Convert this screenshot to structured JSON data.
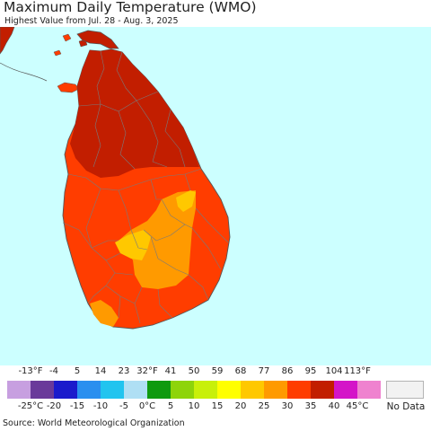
{
  "title": "Maximum Daily Temperature (WMO)",
  "subtitle": "Highest Value from Jul. 28 - Aug. 3, 2025",
  "legend": {
    "fahrenheit_ticks": [
      "-13°F",
      "-4",
      "5",
      "14",
      "23",
      "32°F",
      "41",
      "50",
      "59",
      "68",
      "77",
      "86",
      "95",
      "104",
      "113°F"
    ],
    "celsius_ticks": [
      "-25°C",
      "-20",
      "-15",
      "-10",
      "-5",
      "0°C",
      "5",
      "10",
      "15",
      "20",
      "25",
      "30",
      "35",
      "40",
      "45°C"
    ],
    "colors": [
      "#c79fe0",
      "#6a3a9a",
      "#1b1bcc",
      "#2a8fef",
      "#21c4ef",
      "#afdff4",
      "#0f9a0f",
      "#8ed40a",
      "#c8f00a",
      "#ffff00",
      "#ffc800",
      "#ff9a00",
      "#ff3d00",
      "#c21e00",
      "#d414c8",
      "#ef82cf"
    ],
    "no_data_label": "No Data",
    "no_data_color": "#f2f2f2"
  },
  "map": {
    "ocean_color": "#ccffff",
    "land_region_colors": {
      "outside_land": "#c21e00",
      "northern_plain": "#c21e00",
      "west_and_south": "#ff3d00",
      "central_highlands": "#ff9a00",
      "highland_peaks": "#ffc800",
      "south_coast_patch": "#ff9a00"
    },
    "district_line_color": "#7a7a7a"
  },
  "footer": "Source: World Meteorological Organization"
}
